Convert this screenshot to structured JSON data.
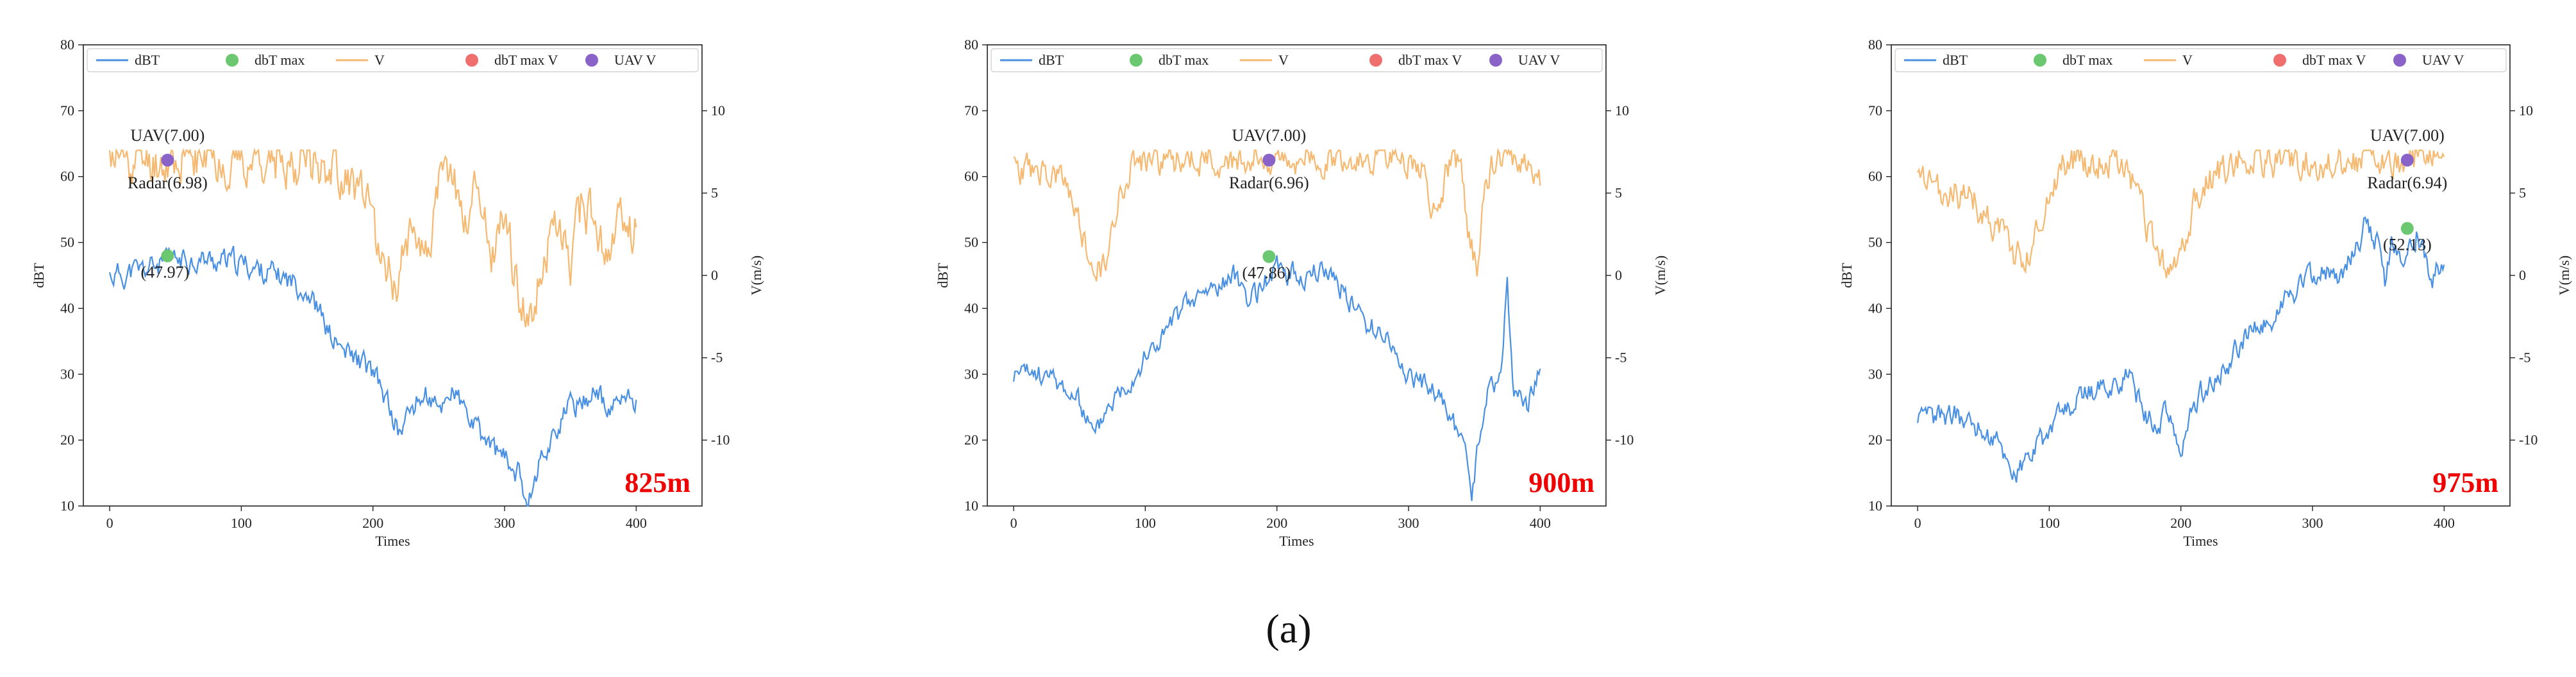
{
  "colors": {
    "dbt": "#4a90e2",
    "v": "#f5b971",
    "dbt_max": "#6cc870",
    "dbt_max_v": "#ef6f6f",
    "uav_v": "#8a63c8",
    "height": "#ee0000"
  },
  "legend": [
    "dBT",
    "dbT max",
    "V",
    "dbT max V",
    "UAV V"
  ],
  "caption": "(a)",
  "chart_data": [
    {
      "type": "line",
      "height_label": "825m",
      "xlabel": "Times",
      "ylabel": "dBT",
      "y2label": "V(m/s)",
      "xlim": [
        -20,
        450
      ],
      "ylim": [
        10,
        80
      ],
      "y2lim": [
        -14,
        14
      ],
      "xticks": [
        0,
        100,
        200,
        300,
        400
      ],
      "yticks": [
        10,
        20,
        30,
        40,
        50,
        60,
        70,
        80
      ],
      "y2ticks": [
        -10,
        -5,
        0,
        5,
        10
      ],
      "dbt_max_point": {
        "x": 44,
        "y": 47.97,
        "label": "(47.97)"
      },
      "uav_point": {
        "x": 44,
        "v": 7.0,
        "label": "UAV(7.00)"
      },
      "radar_label": "Radar(6.98)",
      "dbt_profile": [
        [
          0,
          45
        ],
        [
          20,
          45.5
        ],
        [
          44,
          47
        ],
        [
          60,
          47.5
        ],
        [
          80,
          47.2
        ],
        [
          100,
          46.8
        ],
        [
          120,
          45.5
        ],
        [
          140,
          44
        ],
        [
          150,
          43
        ],
        [
          160,
          39
        ],
        [
          170,
          35
        ],
        [
          180,
          33
        ],
        [
          190,
          32
        ],
        [
          200,
          30
        ],
        [
          210,
          26
        ],
        [
          220,
          21
        ],
        [
          230,
          25
        ],
        [
          240,
          27
        ],
        [
          250,
          24
        ],
        [
          260,
          28
        ],
        [
          270,
          24
        ],
        [
          280,
          21
        ],
        [
          290,
          19
        ],
        [
          300,
          17
        ],
        [
          310,
          15
        ],
        [
          318,
          11
        ],
        [
          325,
          16
        ],
        [
          340,
          22
        ],
        [
          350,
          25
        ],
        [
          360,
          26
        ],
        [
          370,
          28
        ],
        [
          380,
          23
        ],
        [
          384,
          26
        ]
      ],
      "dbt_noise": 1.6,
      "v_profile": [
        [
          0,
          7.1
        ],
        [
          40,
          7
        ],
        [
          80,
          7.1
        ],
        [
          120,
          7.0
        ],
        [
          150,
          7.0
        ],
        [
          165,
          6.8
        ],
        [
          180,
          6
        ],
        [
          190,
          5
        ],
        [
          200,
          3
        ],
        [
          210,
          0.5
        ],
        [
          220,
          -0.5
        ],
        [
          230,
          4
        ],
        [
          240,
          1
        ],
        [
          250,
          5
        ],
        [
          260,
          6.5
        ],
        [
          270,
          3
        ],
        [
          280,
          6
        ],
        [
          290,
          1
        ],
        [
          300,
          4
        ],
        [
          310,
          -1
        ],
        [
          320,
          -2.5
        ],
        [
          330,
          1
        ],
        [
          340,
          3
        ],
        [
          350,
          1
        ],
        [
          360,
          5
        ],
        [
          370,
          2
        ],
        [
          380,
          1
        ],
        [
          386,
          3
        ]
      ],
      "v_noise": 1.3,
      "seed": 11
    },
    {
      "type": "line",
      "height_label": "900m",
      "xlabel": "Times",
      "ylabel": "dBT",
      "y2label": "V(m/s)",
      "xlim": [
        -20,
        450
      ],
      "ylim": [
        10,
        80
      ],
      "y2lim": [
        -14,
        14
      ],
      "xticks": [
        0,
        100,
        200,
        300,
        400
      ],
      "yticks": [
        10,
        20,
        30,
        40,
        50,
        60,
        70,
        80
      ],
      "y2ticks": [
        -10,
        -5,
        0,
        5,
        10
      ],
      "dbt_max_point": {
        "x": 194,
        "y": 47.86,
        "label": "(47.86)"
      },
      "uav_point": {
        "x": 194,
        "v": 7.0,
        "label": "UAV(7.00)"
      },
      "radar_label": "Radar(6.96)",
      "dbt_profile": [
        [
          0,
          30
        ],
        [
          20,
          30
        ],
        [
          40,
          28
        ],
        [
          55,
          24
        ],
        [
          62,
          20
        ],
        [
          70,
          25
        ],
        [
          90,
          30
        ],
        [
          110,
          35
        ],
        [
          130,
          40
        ],
        [
          150,
          43
        ],
        [
          170,
          45
        ],
        [
          180,
          41
        ],
        [
          190,
          44
        ],
        [
          200,
          46
        ],
        [
          220,
          45
        ],
        [
          240,
          46
        ],
        [
          260,
          40
        ],
        [
          270,
          37
        ],
        [
          280,
          37
        ],
        [
          290,
          33
        ],
        [
          300,
          30
        ],
        [
          320,
          27
        ],
        [
          330,
          24
        ],
        [
          340,
          20
        ],
        [
          348,
          12
        ],
        [
          355,
          22
        ],
        [
          360,
          27
        ],
        [
          370,
          30
        ],
        [
          375,
          43
        ],
        [
          380,
          27
        ],
        [
          390,
          25
        ],
        [
          400,
          30
        ]
      ],
      "dbt_noise": 1.5,
      "v_profile": [
        [
          0,
          6.5
        ],
        [
          20,
          6.3
        ],
        [
          40,
          5.5
        ],
        [
          50,
          3
        ],
        [
          60,
          0.5
        ],
        [
          70,
          0.5
        ],
        [
          80,
          5
        ],
        [
          90,
          7
        ],
        [
          150,
          7
        ],
        [
          200,
          7
        ],
        [
          250,
          7.1
        ],
        [
          300,
          7
        ],
        [
          310,
          6.5
        ],
        [
          320,
          3.5
        ],
        [
          330,
          6.5
        ],
        [
          340,
          7
        ],
        [
          345,
          3
        ],
        [
          352,
          0.5
        ],
        [
          358,
          6
        ],
        [
          370,
          7
        ],
        [
          390,
          7
        ],
        [
          400,
          6
        ]
      ],
      "v_noise": 0.8,
      "seed": 23
    },
    {
      "type": "line",
      "height_label": "975m",
      "xlabel": "Times",
      "ylabel": "dBT",
      "y2label": "V(m/s)",
      "xlim": [
        -20,
        450
      ],
      "ylim": [
        10,
        80
      ],
      "y2lim": [
        -14,
        14
      ],
      "xticks": [
        0,
        100,
        200,
        300,
        400
      ],
      "yticks": [
        10,
        20,
        30,
        40,
        50,
        60,
        70,
        80
      ],
      "y2ticks": [
        -10,
        -5,
        0,
        5,
        10
      ],
      "dbt_max_point": {
        "x": 372,
        "y": 52.13,
        "label": "(52.13)"
      },
      "uav_point": {
        "x": 372,
        "v": 7.0,
        "label": "UAV(7.00)"
      },
      "radar_label": "Radar(6.94)",
      "dbt_profile": [
        [
          0,
          22
        ],
        [
          20,
          24
        ],
        [
          40,
          23
        ],
        [
          60,
          20
        ],
        [
          75,
          15
        ],
        [
          90,
          19
        ],
        [
          110,
          24
        ],
        [
          130,
          27
        ],
        [
          150,
          29
        ],
        [
          160,
          30
        ],
        [
          170,
          25
        ],
        [
          180,
          22
        ],
        [
          190,
          24
        ],
        [
          200,
          18
        ],
        [
          210,
          26
        ],
        [
          220,
          28
        ],
        [
          230,
          30
        ],
        [
          250,
          36
        ],
        [
          270,
          39
        ],
        [
          290,
          43
        ],
        [
          310,
          46
        ],
        [
          320,
          44
        ],
        [
          330,
          48
        ],
        [
          340,
          53
        ],
        [
          350,
          50
        ],
        [
          355,
          43
        ],
        [
          360,
          51
        ],
        [
          370,
          47
        ],
        [
          380,
          52
        ],
        [
          390,
          44
        ],
        [
          400,
          47
        ]
      ],
      "dbt_noise": 1.6,
      "v_profile": [
        [
          0,
          6
        ],
        [
          15,
          5
        ],
        [
          30,
          5
        ],
        [
          50,
          4
        ],
        [
          70,
          2
        ],
        [
          80,
          0.5
        ],
        [
          100,
          5
        ],
        [
          110,
          7
        ],
        [
          130,
          7
        ],
        [
          150,
          7
        ],
        [
          160,
          6.5
        ],
        [
          170,
          4
        ],
        [
          180,
          1.5
        ],
        [
          190,
          0.5
        ],
        [
          200,
          1
        ],
        [
          210,
          4
        ],
        [
          220,
          5.5
        ],
        [
          230,
          6.5
        ],
        [
          240,
          7
        ],
        [
          260,
          7
        ],
        [
          300,
          7
        ],
        [
          360,
          7
        ],
        [
          400,
          7
        ]
      ],
      "v_noise": 0.9,
      "seed": 37
    }
  ]
}
